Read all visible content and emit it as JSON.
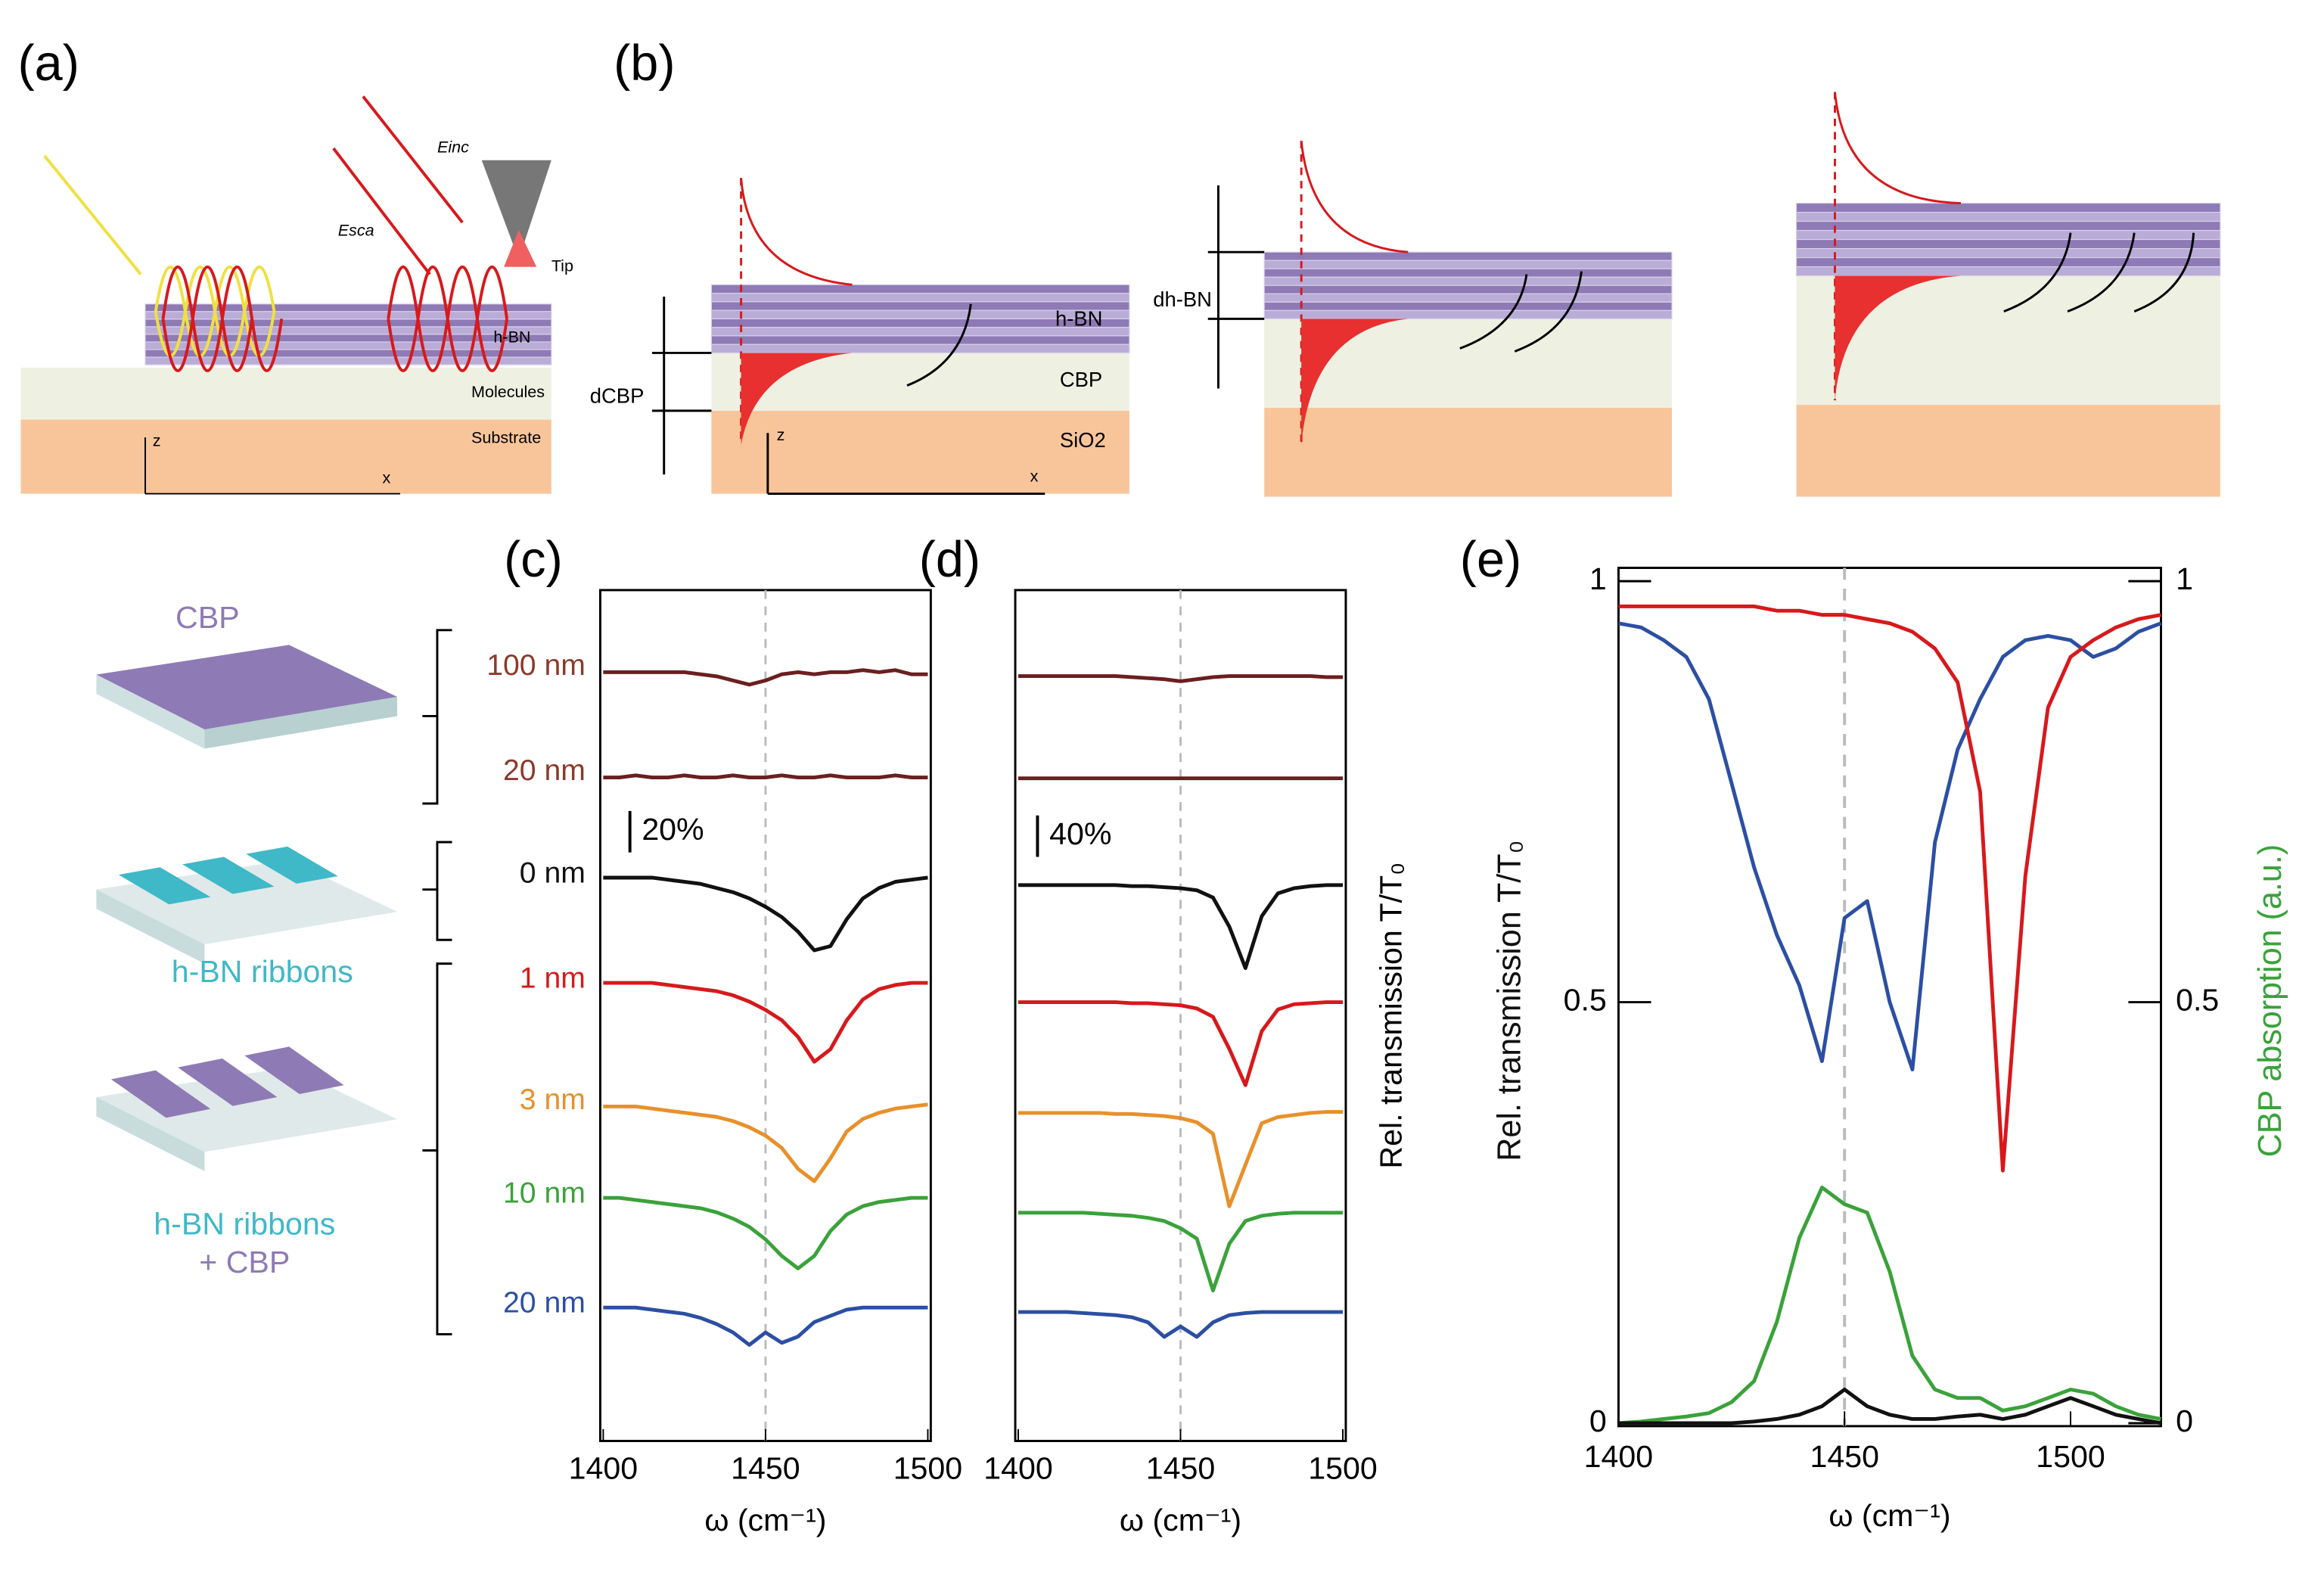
{
  "panel_labels": [
    "(a)",
    "(b)",
    "(c)",
    "(d)",
    "(e)"
  ],
  "diagram_a": {
    "e_inc": "Einc",
    "e_sca": "Esca",
    "tip": "Tip",
    "hbn": "h-BN",
    "molecules": "Molecules",
    "substrate": "Substrate",
    "z": "z",
    "x": "x"
  },
  "diagram_b": {
    "hbn": "h-BN",
    "cbp": "CBP",
    "sio2": "SiO2",
    "d_cbp": "dCBP",
    "d_hbn": "dh-BN",
    "z": "z",
    "x": "x"
  },
  "samples": {
    "cbp": "CBP",
    "ribbons": "h-BN ribbons",
    "ribbons_cbp": [
      "h-BN ribbons",
      "+ CBP"
    ]
  },
  "chart_data": [
    {
      "type": "line",
      "xlabel": "ω (cm⁻¹)",
      "xlim": [
        1400,
        1500
      ],
      "xticks": [
        1400,
        1450,
        1500
      ],
      "vline": 1450,
      "scale_bar": {
        "value": 20,
        "label": "20%"
      },
      "x": [
        1400,
        1405,
        1410,
        1415,
        1420,
        1425,
        1430,
        1435,
        1440,
        1445,
        1450,
        1455,
        1460,
        1465,
        1470,
        1475,
        1480,
        1485,
        1490,
        1495,
        1500
      ],
      "series": [
        {
          "name": "100 nm",
          "color": "#6b1f1f",
          "label_color": "#8b3a2a",
          "values": [
            100,
            100,
            100,
            100,
            100,
            100,
            99,
            98,
            96,
            94,
            96,
            99,
            100,
            99,
            100,
            100,
            101,
            100,
            101,
            99,
            99
          ]
        },
        {
          "name": "20 nm",
          "color": "#6b1f1f",
          "label_color": "#8b3a2a",
          "values": [
            100,
            100,
            101,
            100,
            100,
            101,
            100,
            100,
            101,
            100,
            100,
            101,
            100,
            100,
            101,
            100,
            100,
            100,
            101,
            100,
            100
          ]
        },
        {
          "name": "0 nm",
          "color": "#111111",
          "label_color": "#111111",
          "values": [
            100,
            100,
            100,
            100,
            99,
            98,
            97,
            95,
            93,
            90,
            86,
            81,
            74,
            65,
            67,
            80,
            90,
            95,
            98,
            99,
            100
          ]
        },
        {
          "name": "1 nm",
          "color": "#d7191c",
          "label_color": "#d7191c",
          "values": [
            100,
            100,
            100,
            100,
            99,
            98,
            97,
            96,
            94,
            91,
            87,
            82,
            74,
            62,
            68,
            82,
            92,
            97,
            99,
            100,
            100
          ]
        },
        {
          "name": "3 nm",
          "color": "#e8902a",
          "label_color": "#e8902a",
          "values": [
            100,
            100,
            100,
            99,
            98,
            97,
            96,
            95,
            93,
            90,
            86,
            80,
            70,
            64,
            75,
            88,
            94,
            97,
            99,
            100,
            101
          ]
        },
        {
          "name": "10 nm",
          "color": "#3aa23a",
          "label_color": "#3aa23a",
          "values": [
            100,
            100,
            99,
            98,
            97,
            96,
            95,
            93,
            90,
            86,
            80,
            72,
            66,
            72,
            84,
            92,
            96,
            98,
            99,
            100,
            100
          ]
        },
        {
          "name": "20 nm",
          "color": "#2c4fa3",
          "label_color": "#2c4fa3",
          "values": [
            100,
            100,
            100,
            99,
            98,
            97,
            95,
            92,
            88,
            82,
            88,
            83,
            86,
            93,
            96,
            99,
            100,
            100,
            100,
            100,
            100
          ]
        }
      ]
    },
    {
      "type": "line",
      "xlabel": "ω (cm⁻¹)",
      "ylabel": "Rel. transmission T/T₀",
      "xlim": [
        1400,
        1500
      ],
      "xticks": [
        1400,
        1450,
        1500
      ],
      "vline": 1450,
      "scale_bar": {
        "value": 40,
        "label": "40%"
      },
      "x": [
        1400,
        1405,
        1410,
        1415,
        1420,
        1425,
        1430,
        1435,
        1440,
        1445,
        1450,
        1455,
        1460,
        1465,
        1470,
        1475,
        1480,
        1485,
        1490,
        1495,
        1500
      ],
      "series": [
        {
          "color": "#6b1f1f",
          "values": [
            100,
            100,
            100,
            100,
            100,
            100,
            100,
            99,
            98,
            97,
            95,
            97,
            99,
            100,
            100,
            100,
            100,
            100,
            100,
            99,
            99
          ]
        },
        {
          "color": "#6b1f1f",
          "values": [
            100,
            100,
            100,
            100,
            100,
            100,
            100,
            100,
            100,
            100,
            100,
            100,
            100,
            100,
            100,
            100,
            100,
            100,
            100,
            100,
            100
          ]
        },
        {
          "color": "#111111",
          "values": [
            100,
            100,
            100,
            100,
            100,
            100,
            100,
            99,
            99,
            98,
            97,
            95,
            88,
            60,
            20,
            70,
            92,
            97,
            99,
            100,
            100
          ]
        },
        {
          "color": "#d7191c",
          "values": [
            100,
            100,
            100,
            100,
            100,
            100,
            100,
            99,
            99,
            98,
            97,
            94,
            86,
            55,
            20,
            72,
            93,
            98,
            99,
            100,
            100
          ]
        },
        {
          "color": "#e8902a",
          "values": [
            100,
            100,
            100,
            100,
            100,
            100,
            99,
            99,
            98,
            97,
            95,
            91,
            80,
            10,
            50,
            90,
            96,
            98,
            100,
            101,
            101
          ]
        },
        {
          "color": "#3aa23a",
          "values": [
            100,
            100,
            100,
            100,
            100,
            99,
            98,
            97,
            95,
            92,
            85,
            75,
            25,
            70,
            92,
            97,
            99,
            100,
            100,
            100,
            100
          ]
        },
        {
          "color": "#2c4fa3",
          "values": [
            100,
            100,
            100,
            100,
            99,
            98,
            97,
            95,
            90,
            76,
            86,
            76,
            90,
            97,
            99,
            100,
            100,
            100,
            100,
            100,
            100
          ]
        }
      ]
    },
    {
      "type": "dual-line",
      "xlabel": "ω (cm⁻¹)",
      "ylabel": "Rel. transmission T/T₀",
      "y2label": "CBP absorption (a.u.)",
      "ylabel_color": "#111111",
      "y2label_color": "#3aa23a",
      "xlim": [
        1400,
        1520
      ],
      "xticks": [
        1400,
        1450,
        1500
      ],
      "ylim": [
        0,
        1
      ],
      "yticks": [
        0,
        0.5,
        1
      ],
      "y2lim": [
        0,
        1
      ],
      "y2ticks": [
        0,
        0.5,
        1
      ],
      "vline": 1450,
      "x": [
        1400,
        1405,
        1410,
        1415,
        1420,
        1425,
        1430,
        1435,
        1440,
        1445,
        1450,
        1455,
        1460,
        1465,
        1470,
        1475,
        1480,
        1485,
        1490,
        1495,
        1500,
        1505,
        1510,
        1515,
        1520
      ],
      "series": [
        {
          "color": "#2c4fa3",
          "values": [
            0.95,
            0.945,
            0.93,
            0.91,
            0.86,
            0.76,
            0.66,
            0.58,
            0.52,
            0.43,
            0.6,
            0.62,
            0.5,
            0.42,
            0.69,
            0.8,
            0.86,
            0.91,
            0.93,
            0.935,
            0.93,
            0.91,
            0.92,
            0.94,
            0.95
          ]
        },
        {
          "color": "#d7191c",
          "values": [
            0.97,
            0.97,
            0.97,
            0.97,
            0.97,
            0.97,
            0.97,
            0.965,
            0.965,
            0.96,
            0.96,
            0.955,
            0.95,
            0.94,
            0.92,
            0.88,
            0.75,
            0.3,
            0.65,
            0.85,
            0.91,
            0.93,
            0.945,
            0.955,
            0.96
          ]
        },
        {
          "color": "#3aa23a",
          "axis": "y2",
          "values": [
            0,
            0.002,
            0.005,
            0.008,
            0.012,
            0.025,
            0.05,
            0.12,
            0.22,
            0.28,
            0.26,
            0.25,
            0.18,
            0.08,
            0.04,
            0.03,
            0.03,
            0.015,
            0.02,
            0.03,
            0.04,
            0.035,
            0.02,
            0.01,
            0.005
          ]
        },
        {
          "color": "#111111",
          "axis": "y2",
          "values": [
            0,
            0,
            0,
            0,
            0,
            0,
            0.002,
            0.005,
            0.01,
            0.02,
            0.04,
            0.02,
            0.01,
            0.005,
            0.005,
            0.008,
            0.01,
            0.005,
            0.01,
            0.02,
            0.03,
            0.02,
            0.01,
            0.005,
            0
          ]
        }
      ]
    }
  ]
}
